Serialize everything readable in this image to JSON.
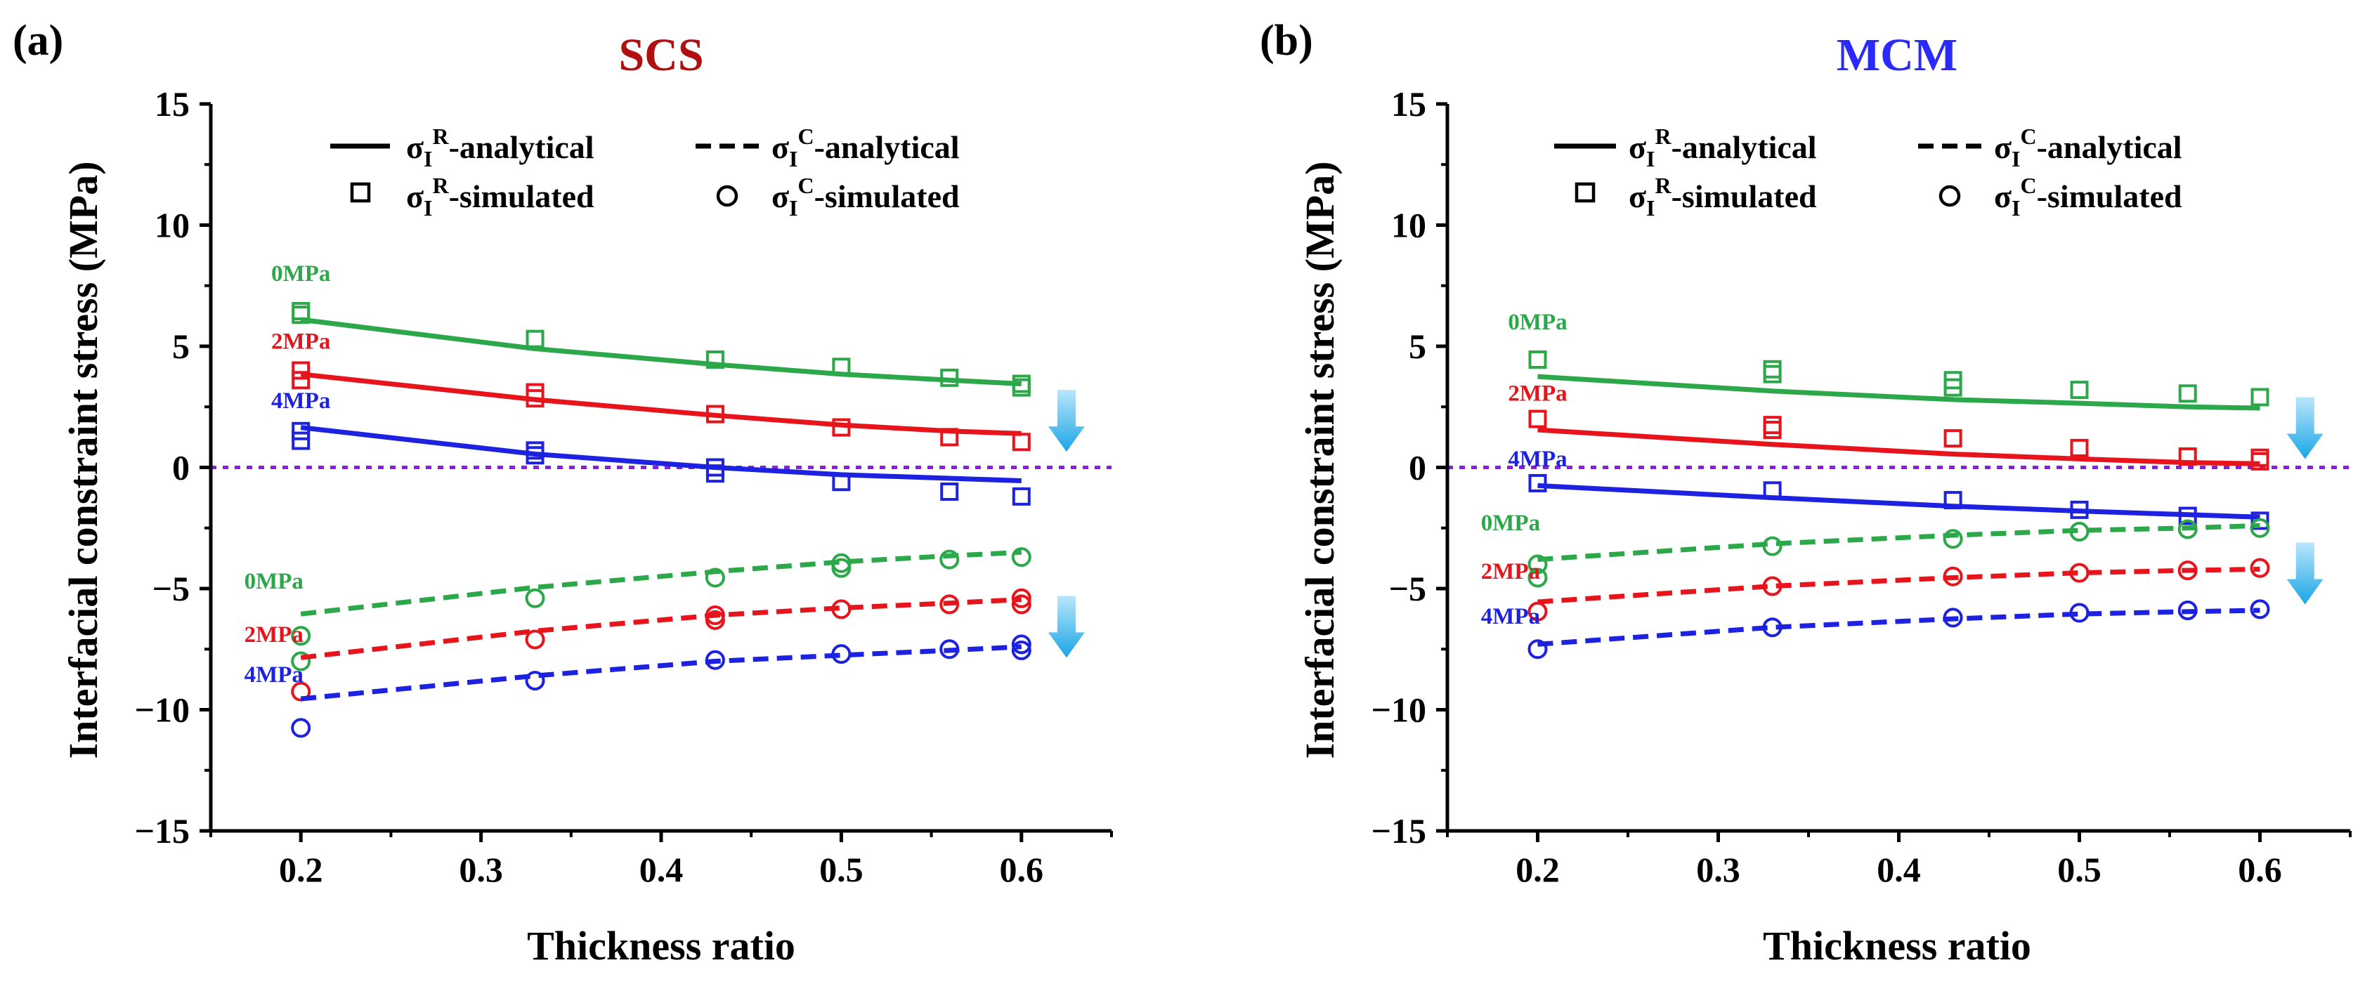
{
  "chart_data": [
    {
      "type": "line",
      "panel_label": "(a)",
      "title": "SCS",
      "title_color": "#b01010",
      "xlabel": "Thickness ratio",
      "ylabel": "Interfacial constraint stress (MPa)",
      "xlim": [
        0.15,
        0.65
      ],
      "ylim": [
        -15,
        15
      ],
      "xticks": [
        0.2,
        0.3,
        0.4,
        0.5,
        0.6
      ],
      "xtick_labels": [
        "0.2",
        "0.3",
        "0.4",
        "0.5",
        "0.6"
      ],
      "yticks": [
        -15,
        -10,
        -5,
        0,
        5,
        10,
        15
      ],
      "ytick_labels": [
        "−15",
        "−10",
        "−5",
        "0",
        "5",
        "10",
        "15"
      ],
      "zero_line_color": "#8b1ce6",
      "legend": {
        "solid": {
          "base": "σ",
          "sub": "I",
          "sup": "R",
          "suffix": "-analytical"
        },
        "dashed": {
          "base": "σ",
          "sub": "I",
          "sup": "C",
          "suffix": "-analytical"
        },
        "square": {
          "base": "σ",
          "sub": "I",
          "sup": "R",
          "suffix": "-simulated"
        },
        "circle": {
          "base": "σ",
          "sub": "I",
          "sup": "C",
          "suffix": "-simulated"
        }
      },
      "series": [
        {
          "name": "0MPa",
          "color": "#2ca84a",
          "style": "solid",
          "x": [
            0.2,
            0.33,
            0.43,
            0.5,
            0.56,
            0.6
          ],
          "values": [
            6.1,
            4.9,
            4.25,
            3.85,
            3.6,
            3.45
          ],
          "markers": "square",
          "sim_x": [
            0.2,
            0.2,
            0.33,
            0.43,
            0.5,
            0.56,
            0.6,
            0.6
          ],
          "sim_values": [
            6.45,
            6.3,
            5.3,
            4.45,
            4.15,
            3.7,
            3.45,
            3.3
          ]
        },
        {
          "name": "2MPa",
          "color": "#e8141c",
          "style": "solid",
          "x": [
            0.2,
            0.33,
            0.43,
            0.5,
            0.56,
            0.6
          ],
          "values": [
            3.85,
            2.8,
            2.15,
            1.75,
            1.5,
            1.4
          ],
          "markers": "square",
          "sim_x": [
            0.2,
            0.2,
            0.33,
            0.33,
            0.43,
            0.5,
            0.56,
            0.6
          ],
          "sim_values": [
            4.0,
            3.6,
            3.1,
            2.85,
            2.2,
            1.65,
            1.25,
            1.05
          ]
        },
        {
          "name": "4MPa",
          "color": "#1c22e0",
          "style": "solid",
          "x": [
            0.2,
            0.33,
            0.43,
            0.5,
            0.56,
            0.6
          ],
          "values": [
            1.65,
            0.55,
            0.0,
            -0.3,
            -0.45,
            -0.55
          ],
          "markers": "square",
          "sim_x": [
            0.2,
            0.2,
            0.33,
            0.33,
            0.43,
            0.43,
            0.5,
            0.56,
            0.6
          ],
          "sim_values": [
            1.5,
            1.1,
            0.7,
            0.5,
            0.0,
            -0.25,
            -0.6,
            -1.0,
            -1.2
          ]
        },
        {
          "name": "0MPa",
          "color": "#2ca84a",
          "style": "dashed",
          "x": [
            0.2,
            0.33,
            0.43,
            0.5,
            0.56,
            0.6
          ],
          "values": [
            -6.05,
            -4.95,
            -4.3,
            -3.9,
            -3.65,
            -3.5
          ],
          "markers": "circle",
          "sim_x": [
            0.2,
            0.2,
            0.33,
            0.43,
            0.5,
            0.5,
            0.56,
            0.6
          ],
          "sim_values": [
            -6.95,
            -8.0,
            -5.4,
            -4.55,
            -3.95,
            -4.15,
            -3.8,
            -3.7
          ]
        },
        {
          "name": "2MPa",
          "color": "#e8141c",
          "style": "dashed",
          "x": [
            0.2,
            0.33,
            0.43,
            0.5,
            0.56,
            0.6
          ],
          "values": [
            -7.85,
            -6.75,
            -6.1,
            -5.8,
            -5.6,
            -5.45
          ],
          "markers": "circle",
          "sim_x": [
            0.2,
            0.33,
            0.43,
            0.43,
            0.5,
            0.56,
            0.6,
            0.6
          ],
          "sim_values": [
            -9.25,
            -7.1,
            -6.1,
            -6.3,
            -5.85,
            -5.65,
            -5.4,
            -5.65
          ]
        },
        {
          "name": "4MPa",
          "color": "#1c22e0",
          "style": "dashed",
          "x": [
            0.2,
            0.33,
            0.43,
            0.5,
            0.56,
            0.6
          ],
          "values": [
            -9.55,
            -8.6,
            -8.0,
            -7.75,
            -7.55,
            -7.4
          ],
          "markers": "circle",
          "sim_x": [
            0.2,
            0.33,
            0.43,
            0.5,
            0.56,
            0.6,
            0.6
          ],
          "sim_values": [
            -10.75,
            -8.8,
            -7.95,
            -7.7,
            -7.5,
            -7.3,
            -7.55
          ]
        }
      ],
      "annotations": [
        {
          "text": "0MPa",
          "color": "#2ca84a",
          "x": 0.2,
          "y": 7.7
        },
        {
          "text": "2MPa",
          "color": "#e8141c",
          "x": 0.2,
          "y": 4.9
        },
        {
          "text": "4MPa",
          "color": "#1c22e0",
          "x": 0.2,
          "y": 2.45
        },
        {
          "text": "0MPa",
          "color": "#2ca84a",
          "x": 0.185,
          "y": -5.0
        },
        {
          "text": "2MPa",
          "color": "#e8141c",
          "x": 0.185,
          "y": -7.2
        },
        {
          "text": "4MPa",
          "color": "#1c22e0",
          "x": 0.185,
          "y": -8.85
        }
      ],
      "arrows": [
        {
          "x": 0.625,
          "y": 3.2
        },
        {
          "x": 0.625,
          "y": -5.3
        }
      ]
    },
    {
      "type": "line",
      "panel_label": "(b)",
      "title": "MCM",
      "title_color": "#2a2aff",
      "xlabel": "Thickness ratio",
      "ylabel": "Interfacial constraint stress (MPa)",
      "xlim": [
        0.15,
        0.65
      ],
      "ylim": [
        -15,
        15
      ],
      "xticks": [
        0.2,
        0.3,
        0.4,
        0.5,
        0.6
      ],
      "xtick_labels": [
        "0.2",
        "0.3",
        "0.4",
        "0.5",
        "0.6"
      ],
      "yticks": [
        -15,
        -10,
        -5,
        0,
        5,
        10,
        15
      ],
      "ytick_labels": [
        "−15",
        "−10",
        "−5",
        "0",
        "5",
        "10",
        "15"
      ],
      "zero_line_color": "#8b1ce6",
      "legend": {
        "solid": {
          "base": "σ",
          "sub": "I",
          "sup": "R",
          "suffix": "-analytical"
        },
        "dashed": {
          "base": "σ",
          "sub": "I",
          "sup": "C",
          "suffix": "-analytical"
        },
        "square": {
          "base": "σ",
          "sub": "I",
          "sup": "R",
          "suffix": "-simulated"
        },
        "circle": {
          "base": "σ",
          "sub": "I",
          "sup": "C",
          "suffix": "-simulated"
        }
      },
      "series": [
        {
          "name": "0MPa",
          "color": "#2ca84a",
          "style": "solid",
          "x": [
            0.2,
            0.33,
            0.43,
            0.5,
            0.56,
            0.6
          ],
          "values": [
            3.75,
            3.15,
            2.8,
            2.65,
            2.5,
            2.45
          ],
          "markers": "square",
          "sim_x": [
            0.2,
            0.33,
            0.33,
            0.43,
            0.43,
            0.5,
            0.56,
            0.6
          ],
          "sim_values": [
            4.45,
            4.05,
            3.85,
            3.6,
            3.3,
            3.2,
            3.05,
            2.9
          ]
        },
        {
          "name": "2MPa",
          "color": "#e8141c",
          "style": "solid",
          "x": [
            0.2,
            0.33,
            0.43,
            0.5,
            0.56,
            0.6
          ],
          "values": [
            1.55,
            0.95,
            0.55,
            0.35,
            0.2,
            0.15
          ],
          "markers": "square",
          "sim_x": [
            0.2,
            0.33,
            0.33,
            0.43,
            0.5,
            0.56,
            0.6,
            0.6
          ],
          "sim_values": [
            2.0,
            1.75,
            1.55,
            1.2,
            0.8,
            0.45,
            0.4,
            0.25
          ]
        },
        {
          "name": "4MPa",
          "color": "#1c22e0",
          "style": "solid",
          "x": [
            0.2,
            0.33,
            0.43,
            0.5,
            0.56,
            0.6
          ],
          "values": [
            -0.75,
            -1.25,
            -1.6,
            -1.8,
            -1.95,
            -2.05
          ],
          "markers": "square",
          "sim_x": [
            0.2,
            0.33,
            0.43,
            0.5,
            0.56,
            0.6
          ],
          "sim_values": [
            -0.65,
            -0.95,
            -1.35,
            -1.75,
            -2.0,
            -2.2
          ]
        },
        {
          "name": "0MPa",
          "color": "#2ca84a",
          "style": "dashed",
          "x": [
            0.2,
            0.33,
            0.43,
            0.5,
            0.56,
            0.6
          ],
          "values": [
            -3.8,
            -3.15,
            -2.8,
            -2.6,
            -2.5,
            -2.4
          ],
          "markers": "circle",
          "sim_x": [
            0.2,
            0.2,
            0.33,
            0.43,
            0.5,
            0.56,
            0.6
          ],
          "sim_values": [
            -4.0,
            -4.55,
            -3.25,
            -2.95,
            -2.65,
            -2.55,
            -2.5
          ]
        },
        {
          "name": "2MPa",
          "color": "#e8141c",
          "style": "dashed",
          "x": [
            0.2,
            0.33,
            0.43,
            0.5,
            0.56,
            0.6
          ],
          "values": [
            -5.55,
            -4.9,
            -4.55,
            -4.35,
            -4.25,
            -4.2
          ],
          "markers": "circle",
          "sim_x": [
            0.2,
            0.33,
            0.43,
            0.5,
            0.56,
            0.6
          ],
          "sim_values": [
            -5.95,
            -4.9,
            -4.5,
            -4.35,
            -4.25,
            -4.15
          ]
        },
        {
          "name": "4MPa",
          "color": "#1c22e0",
          "style": "dashed",
          "x": [
            0.2,
            0.33,
            0.43,
            0.5,
            0.56,
            0.6
          ],
          "values": [
            -7.3,
            -6.6,
            -6.25,
            -6.05,
            -5.95,
            -5.9
          ],
          "markers": "circle",
          "sim_x": [
            0.2,
            0.33,
            0.43,
            0.5,
            0.56,
            0.6
          ],
          "sim_values": [
            -7.5,
            -6.6,
            -6.2,
            -6.0,
            -5.9,
            -5.85
          ]
        }
      ],
      "annotations": [
        {
          "text": "0MPa",
          "color": "#2ca84a",
          "x": 0.2,
          "y": 5.7
        },
        {
          "text": "2MPa",
          "color": "#e8141c",
          "x": 0.2,
          "y": 2.75
        },
        {
          "text": "4MPa",
          "color": "#1c22e0",
          "x": 0.2,
          "y": 0.05
        },
        {
          "text": "0MPa",
          "color": "#2ca84a",
          "x": 0.185,
          "y": -2.6
        },
        {
          "text": "2MPa",
          "color": "#e8141c",
          "x": 0.185,
          "y": -4.6
        },
        {
          "text": "4MPa",
          "color": "#1c22e0",
          "x": 0.185,
          "y": -6.45
        }
      ],
      "arrows": [
        {
          "x": 0.625,
          "y": 2.9
        },
        {
          "x": 0.625,
          "y": -3.1
        }
      ]
    }
  ]
}
